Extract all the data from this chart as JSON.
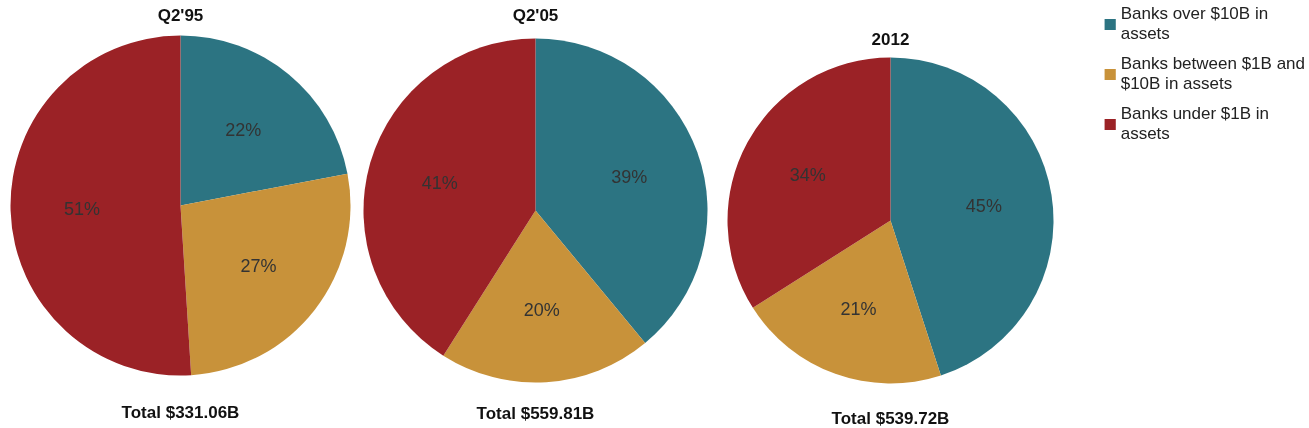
{
  "chart_data": [
    {
      "type": "pie",
      "title": "Q2'95",
      "categories": [
        null,
        null,
        null
      ],
      "values": [
        22,
        27,
        51
      ],
      "value_labels": [
        "22%",
        "27%",
        "51%"
      ],
      "colors": [
        "#2c7482",
        "#c8923a",
        "#9b2226"
      ],
      "annotations": [
        "Total $331.06B"
      ]
    },
    {
      "type": "pie",
      "title": "Q2'05",
      "categories": [
        null,
        null,
        null
      ],
      "values": [
        39,
        20,
        41
      ],
      "value_labels": [
        "39%",
        "20%",
        "41%"
      ],
      "colors": [
        "#2c7482",
        "#c8923a",
        "#9b2226"
      ],
      "annotations": [
        "Total $559.81B"
      ]
    },
    {
      "type": "pie",
      "title": "2012",
      "categories": [
        "Banks over $10B in assets",
        "Banks between $1B and $10B in assets",
        "Banks under $1B in assets"
      ],
      "values": [
        45,
        21,
        34
      ],
      "value_labels": [
        "45%",
        "21%",
        "34%"
      ],
      "colors": [
        "#2c7482",
        "#c8923a",
        "#9b2226"
      ],
      "legend": "top right",
      "annotations": [
        "Total $539.72B"
      ]
    }
  ]
}
